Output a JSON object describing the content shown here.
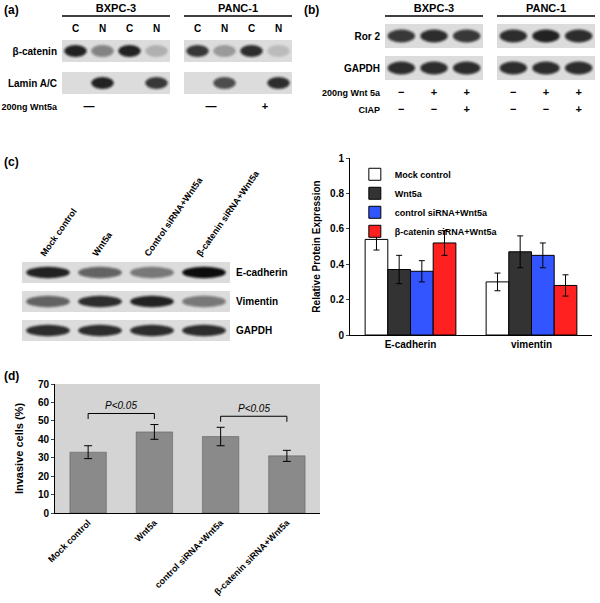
{
  "panel_labels": {
    "a": "(a)",
    "b": "(b)",
    "c": "(c)",
    "d": "(d)"
  },
  "blots": {
    "a": {
      "groups": [
        {
          "name": "BXPC-3",
          "lanes": [
            "C",
            "N",
            "C",
            "N"
          ]
        },
        {
          "name": "PANC-1",
          "lanes": [
            "C",
            "N",
            "C",
            "N"
          ]
        }
      ],
      "rows": [
        {
          "name": "β-catenin",
          "intensity": [
            0.9,
            0.45,
            0.9,
            0.2,
            0.8,
            0.3,
            0.85,
            0.15
          ]
        },
        {
          "name": "Lamin A/C",
          "intensity": [
            0,
            0.9,
            0,
            0.8,
            0,
            0.7,
            0,
            0.85
          ]
        }
      ],
      "treatments": [
        {
          "name": "200ng Wnt5a",
          "marks": [
            "—",
            null,
            "—",
            "+"
          ]
        }
      ]
    },
    "b": {
      "groups": [
        {
          "name": "BXPC-3",
          "lanes": 3
        },
        {
          "name": "PANC-1",
          "lanes": 3
        }
      ],
      "rows": [
        {
          "name": "Ror 2",
          "intensity": [
            0.8,
            0.85,
            0.8,
            0.85,
            0.9,
            0.85
          ]
        },
        {
          "name": "GAPDH",
          "intensity": [
            0.85,
            0.85,
            0.85,
            0.85,
            0.85,
            0.85
          ]
        }
      ],
      "treatments": [
        {
          "name": "200ng Wnt 5a",
          "marks": [
            "−",
            "+",
            "+",
            "−",
            "+",
            "+"
          ]
        },
        {
          "name": "CIAP",
          "marks": [
            "−",
            "−",
            "+",
            "−",
            "−",
            "+"
          ]
        }
      ]
    },
    "c": {
      "lanes": [
        "Mock control",
        "Wnt5a",
        "Control siRNA+Wnt5a",
        "β-catenin siRNA+Wnt5a"
      ],
      "rows": [
        {
          "name": "E-cadherin",
          "intensity": [
            0.9,
            0.6,
            0.5,
            1.0
          ]
        },
        {
          "name": "Vimentin",
          "intensity": [
            0.6,
            0.85,
            0.9,
            0.5
          ]
        },
        {
          "name": "GAPDH",
          "intensity": [
            0.85,
            0.85,
            0.85,
            0.85
          ]
        }
      ]
    }
  },
  "chart_data": [
    {
      "type": "bar",
      "y_label": "Relative Protein Expression",
      "categories": [
        "E-cadherin",
        "vimentin"
      ],
      "series": [
        {
          "name": "Mock control",
          "color": "#ffffff",
          "values": [
            0.54,
            0.3
          ],
          "errors": [
            0.06,
            0.05
          ]
        },
        {
          "name": "Wnt5a",
          "color": "#333333",
          "values": [
            0.37,
            0.47
          ],
          "errors": [
            0.08,
            0.09
          ]
        },
        {
          "name": "control siRNA+Wnt5a",
          "color": "#3355ff",
          "values": [
            0.36,
            0.45
          ],
          "errors": [
            0.06,
            0.07
          ]
        },
        {
          "name": "β-catenin siRNA+Wnt5a",
          "color": "#ff2020",
          "values": [
            0.52,
            0.28
          ],
          "errors": [
            0.07,
            0.06
          ]
        }
      ],
      "ylim": [
        0,
        1
      ],
      "yticks": [
        0,
        0.2,
        0.4,
        0.6,
        0.8,
        1
      ],
      "legend": "top-left",
      "grid": false
    },
    {
      "type": "bar",
      "y_label": "Invasive cells (%)",
      "categories": [
        "Mock control",
        "Wnt5a",
        "control siRNA+Wnt5a",
        "β-catenin siRNA+Wnt5a"
      ],
      "values": [
        33,
        44,
        41.5,
        31
      ],
      "errors": [
        3.5,
        4,
        5,
        3
      ],
      "color": "#8a8a8a",
      "ylim": [
        0,
        70
      ],
      "yticks": [
        0,
        10,
        20,
        30,
        40,
        50,
        60,
        70
      ],
      "grid": false,
      "annotations": [
        {
          "text": "P<0.05",
          "between": [
            "Mock control",
            "Wnt5a"
          ]
        },
        {
          "text": "P<0.05",
          "between": [
            "control siRNA+Wnt5a",
            "β-catenin siRNA+Wnt5a"
          ]
        }
      ]
    }
  ]
}
